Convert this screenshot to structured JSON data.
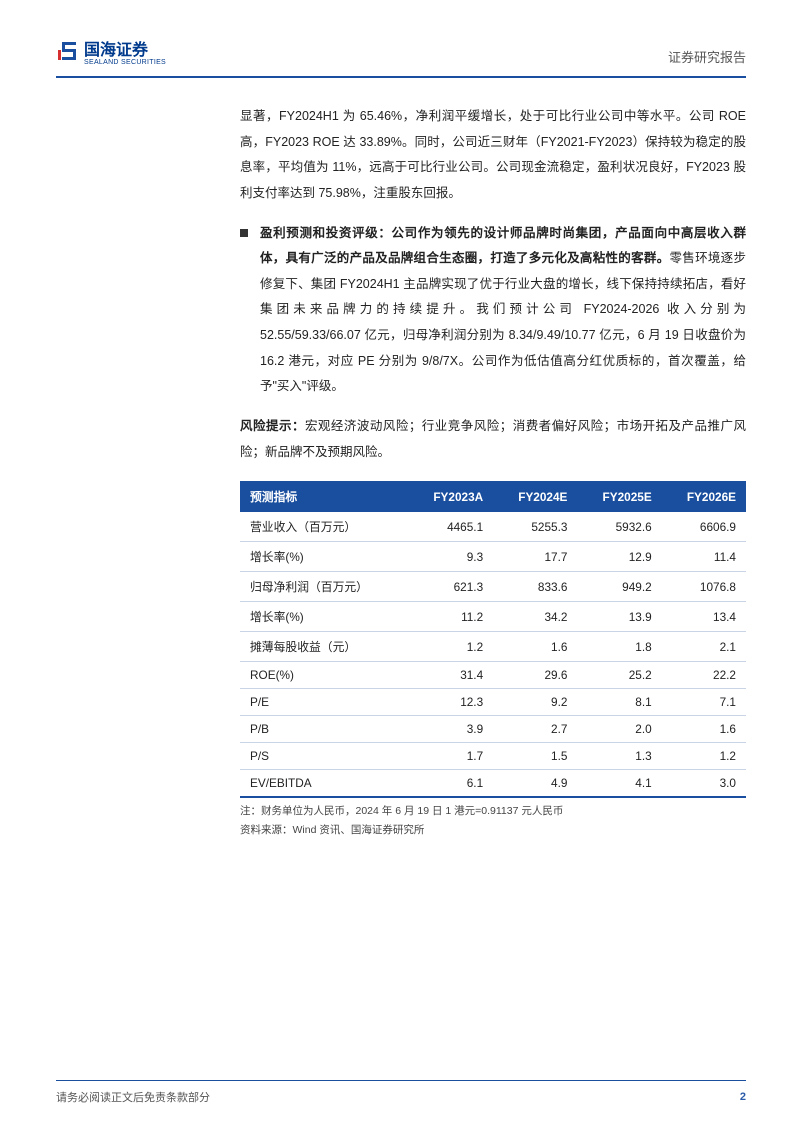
{
  "header": {
    "logo_cn": "国海证券",
    "logo_en": "SEALAND SECURITIES",
    "right_text": "证券研究报告",
    "rule_color": "#1a4e9e",
    "logo_color": "#003a8c"
  },
  "paragraphs": {
    "p1": "显著，FY2024H1 为 65.46%，净利润平缓增长，处于可比行业公司中等水平。公司 ROE 高，FY2023 ROE 达 33.89%。同时，公司近三财年（FY2021-FY2023）保持较为稳定的股息率，平均值为 11%，远高于可比行业公司。公司现金流稳定，盈利状况良好，FY2023 股利支付率达到 75.98%，注重股东回报。",
    "p2_bold": "盈利预测和投资评级：公司作为领先的设计师品牌时尚集团，产品面向中高层收入群体，具有广泛的产品及品牌组合生态圈，打造了多元化及高粘性的客群。",
    "p2_rest": "零售环境逐步修复下、集团 FY2024H1 主品牌实现了优于行业大盘的增长，线下保持持续拓店，看好集团未来品牌力的持续提升。我们预计公司 FY2024-2026 收入分别为 52.55/59.33/66.07 亿元，归母净利润分别为 8.34/9.49/10.77 亿元，6 月 19 日收盘价为 16.2 港元，对应 PE 分别为 9/8/7X。公司作为低估值高分红优质标的，首次覆盖，给予\"买入\"评级。",
    "p3_bold": "风险提示：",
    "p3_rest": "宏观经济波动风险；行业竞争风险；消费者偏好风险；市场开拓及产品推广风险；新品牌不及预期风险。"
  },
  "table": {
    "header_bg": "#1a4e9e",
    "header_text_color": "#ffffff",
    "row_border_color": "#c9d4e6",
    "bottom_border_color": "#1a4e9e",
    "columns": [
      "预测指标",
      "FY2023A",
      "FY2024E",
      "FY2025E",
      "FY2026E"
    ],
    "rows": [
      [
        "营业收入（百万元）",
        "4465.1",
        "5255.3",
        "5932.6",
        "6606.9"
      ],
      [
        "增长率(%)",
        "9.3",
        "17.7",
        "12.9",
        "11.4"
      ],
      [
        "归母净利润（百万元）",
        "621.3",
        "833.6",
        "949.2",
        "1076.8"
      ],
      [
        "增长率(%)",
        "11.2",
        "34.2",
        "13.9",
        "13.4"
      ],
      [
        "摊薄每股收益（元）",
        "1.2",
        "1.6",
        "1.8",
        "2.1"
      ],
      [
        "ROE(%)",
        "31.4",
        "29.6",
        "25.2",
        "22.2"
      ],
      [
        "P/E",
        "12.3",
        "9.2",
        "8.1",
        "7.1"
      ],
      [
        "P/B",
        "3.9",
        "2.7",
        "2.0",
        "1.6"
      ],
      [
        "P/S",
        "1.7",
        "1.5",
        "1.3",
        "1.2"
      ],
      [
        "EV/EBITDA",
        "6.1",
        "4.9",
        "4.1",
        "3.0"
      ]
    ],
    "note": "注：财务单位为人民币，2024 年 6 月 19 日 1 港元=0.91137 元人民币",
    "source": "资料来源：Wind 资讯、国海证券研究所"
  },
  "footer": {
    "left": "请务必阅读正文后免责条款部分",
    "page": "2"
  }
}
